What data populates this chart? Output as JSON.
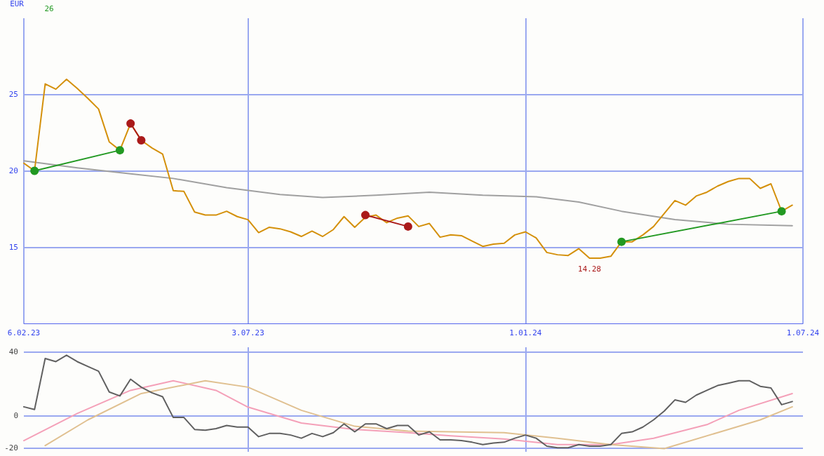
{
  "chart_data": [
    {
      "type": "line",
      "ylabel": "EUR",
      "xlim": [
        "2023-02-06",
        "2024-07-01"
      ],
      "ylim": [
        10,
        30
      ],
      "yticks": [
        15,
        20,
        25
      ],
      "xticks": [
        {
          "value": "2023-02-06",
          "label": "6.02.23"
        },
        {
          "value": "2023-07-03",
          "label": "3.07.23"
        },
        {
          "value": "2024-01-01",
          "label": "1.01.24"
        },
        {
          "value": "2024-07-01",
          "label": "1.07.24"
        }
      ],
      "grid": true,
      "annotations": [
        "26",
        {
          "text": "14.28",
          "x": "2024-02-12",
          "y": 14.28
        }
      ],
      "series": [
        {
          "color": "#a0a0a0",
          "marker": "none",
          "x": [
            "2023-02-06",
            "2023-03-13",
            "2023-04-17",
            "2023-05-15",
            "2023-06-19",
            "2023-07-24",
            "2023-08-21",
            "2023-09-25",
            "2023-10-30",
            "2023-12-04",
            "2024-01-08",
            "2024-02-05",
            "2024-03-04",
            "2024-04-08",
            "2024-05-13",
            "2024-06-24"
          ],
          "values": [
            20.65,
            20.2,
            19.8,
            19.5,
            18.9,
            18.45,
            18.25,
            18.4,
            18.6,
            18.4,
            18.3,
            17.95,
            17.35,
            16.8,
            16.5,
            16.4
          ]
        },
        {
          "color": "#d4900a",
          "marker": "none",
          "x": [
            "2023-02-06",
            "2023-02-13",
            "2023-02-20",
            "2023-02-27",
            "2023-03-06",
            "2023-03-13",
            "2023-03-20",
            "2023-03-27",
            "2023-04-03",
            "2023-04-10",
            "2023-04-17",
            "2023-04-24",
            "2023-05-01",
            "2023-05-08",
            "2023-05-15",
            "2023-05-22",
            "2023-05-29",
            "2023-06-05",
            "2023-06-12",
            "2023-06-19",
            "2023-06-26",
            "2023-07-03",
            "2023-07-10",
            "2023-07-17",
            "2023-07-24",
            "2023-07-31",
            "2023-08-07",
            "2023-08-14",
            "2023-08-21",
            "2023-08-28",
            "2023-09-04",
            "2023-09-11",
            "2023-09-18",
            "2023-09-25",
            "2023-10-02",
            "2023-10-09",
            "2023-10-16",
            "2023-10-23",
            "2023-10-30",
            "2023-11-06",
            "2023-11-13",
            "2023-11-20",
            "2023-11-27",
            "2023-12-04",
            "2023-12-11",
            "2023-12-18",
            "2023-12-25",
            "2024-01-01",
            "2024-01-08",
            "2024-01-15",
            "2024-01-22",
            "2024-01-29",
            "2024-02-05",
            "2024-02-12",
            "2024-02-19",
            "2024-02-26",
            "2024-03-04",
            "2024-03-11",
            "2024-03-18",
            "2024-03-25",
            "2024-04-01",
            "2024-04-08",
            "2024-04-15",
            "2024-04-22",
            "2024-04-29",
            "2024-05-06",
            "2024-05-13",
            "2024-05-20",
            "2024-05-27",
            "2024-06-03",
            "2024-06-10",
            "2024-06-17",
            "2024-06-24"
          ],
          "values": [
            20.5,
            20.0,
            25.7,
            25.35,
            26.0,
            25.4,
            24.75,
            24.05,
            21.9,
            21.35,
            23.1,
            22.0,
            21.5,
            21.1,
            18.7,
            18.65,
            17.3,
            17.1,
            17.1,
            17.35,
            17.0,
            16.8,
            15.95,
            16.3,
            16.2,
            16.0,
            15.7,
            16.05,
            15.7,
            16.15,
            17.0,
            16.3,
            16.95,
            17.1,
            16.6,
            16.9,
            17.05,
            16.35,
            16.55,
            15.65,
            15.8,
            15.75,
            15.4,
            15.05,
            15.2,
            15.25,
            15.8,
            16.0,
            15.6,
            14.65,
            14.5,
            14.45,
            14.9,
            14.28,
            14.28,
            14.4,
            15.35,
            15.35,
            15.8,
            16.35,
            17.2,
            18.05,
            17.75,
            18.35,
            18.6,
            19.0,
            19.3,
            19.5,
            19.5,
            18.85,
            19.15,
            17.35,
            17.75
          ]
        },
        {
          "color": "#229922",
          "marker": "circle",
          "x": [
            "2023-02-13",
            "2023-04-10"
          ],
          "values": [
            20.0,
            21.35
          ]
        },
        {
          "color": "#aa1a1a",
          "marker": "circle",
          "x": [
            "2023-04-17",
            "2023-04-24"
          ],
          "values": [
            23.1,
            22.0
          ]
        },
        {
          "color": "#aa1a1a",
          "marker": "circle",
          "x": [
            "2023-09-18",
            "2023-10-16"
          ],
          "values": [
            17.1,
            16.35
          ]
        },
        {
          "color": "#229922",
          "marker": "circle",
          "x": [
            "2024-03-04",
            "2024-06-17"
          ],
          "values": [
            15.35,
            17.35
          ]
        }
      ]
    },
    {
      "type": "line",
      "xlim": [
        "2023-02-06",
        "2024-07-01"
      ],
      "ylim": [
        -22.5,
        43
      ],
      "yticks": [
        -20,
        0,
        40
      ],
      "xticks": [
        {
          "value": "2023-07-03",
          "label": null
        },
        {
          "value": "2024-01-01",
          "label": null
        }
      ],
      "grid": true,
      "tick_labels": "y",
      "series": [
        {
          "color": "#f4a0b8",
          "x": [
            "2023-02-06",
            "2023-03-13",
            "2023-04-17",
            "2023-05-15",
            "2023-06-12",
            "2023-07-03",
            "2023-08-07",
            "2023-09-11",
            "2023-10-16",
            "2023-11-13",
            "2023-12-18",
            "2024-01-22",
            "2024-02-26",
            "2024-03-25",
            "2024-04-29",
            "2024-05-20",
            "2024-06-24"
          ],
          "values": [
            -15.5,
            1.5,
            16,
            22,
            16,
            5.5,
            -4.5,
            -8.5,
            -10.5,
            -12.5,
            -14.5,
            -18,
            -18,
            -14,
            -5.5,
            3.5,
            14
          ]
        },
        {
          "color": "#e0c090",
          "x": [
            "2023-02-20",
            "2023-03-20",
            "2023-04-24",
            "2023-06-05",
            "2023-07-03",
            "2023-08-07",
            "2023-09-11",
            "2023-10-16",
            "2023-11-13",
            "2023-12-18",
            "2024-01-22",
            "2024-02-26",
            "2024-04-01",
            "2024-05-06",
            "2024-06-03",
            "2024-06-24"
          ],
          "values": [
            -18.6,
            -2.5,
            14,
            22,
            18,
            3.5,
            -6.5,
            -9.5,
            -10,
            -10.5,
            -14,
            -18,
            -20.5,
            -10.5,
            -2.5,
            5.7
          ]
        },
        {
          "color": "#606060",
          "x": [
            "2023-02-06",
            "2023-02-13",
            "2023-02-20",
            "2023-02-27",
            "2023-03-06",
            "2023-03-13",
            "2023-03-20",
            "2023-03-27",
            "2023-04-03",
            "2023-04-10",
            "2023-04-17",
            "2023-04-24",
            "2023-05-01",
            "2023-05-08",
            "2023-05-15",
            "2023-05-22",
            "2023-05-29",
            "2023-06-05",
            "2023-06-12",
            "2023-06-19",
            "2023-06-26",
            "2023-07-03",
            "2023-07-10",
            "2023-07-17",
            "2023-07-24",
            "2023-07-31",
            "2023-08-07",
            "2023-08-14",
            "2023-08-21",
            "2023-08-28",
            "2023-09-04",
            "2023-09-11",
            "2023-09-18",
            "2023-09-25",
            "2023-10-02",
            "2023-10-09",
            "2023-10-16",
            "2023-10-23",
            "2023-10-30",
            "2023-11-06",
            "2023-11-13",
            "2023-11-20",
            "2023-11-27",
            "2023-12-04",
            "2023-12-11",
            "2023-12-18",
            "2023-12-25",
            "2024-01-01",
            "2024-01-08",
            "2024-01-15",
            "2024-01-22",
            "2024-01-29",
            "2024-02-05",
            "2024-02-12",
            "2024-02-19",
            "2024-02-26",
            "2024-03-04",
            "2024-03-11",
            "2024-03-18",
            "2024-03-25",
            "2024-04-01",
            "2024-04-08",
            "2024-04-15",
            "2024-04-22",
            "2024-04-29",
            "2024-05-06",
            "2024-05-13",
            "2024-05-20",
            "2024-05-27",
            "2024-06-03",
            "2024-06-10",
            "2024-06-17",
            "2024-06-24"
          ],
          "values": [
            5.7,
            4,
            36,
            34,
            38,
            34,
            31,
            28,
            15,
            12.5,
            23,
            18,
            14.5,
            12,
            -1,
            -1,
            -8.5,
            -9,
            -8,
            -6,
            -7,
            -7,
            -13,
            -11,
            -11,
            -12,
            -14,
            -11,
            -13,
            -10.5,
            -5,
            -10,
            -5,
            -5,
            -8,
            -6,
            -6,
            -12,
            -10,
            -15,
            -15,
            -15.5,
            -16.5,
            -18,
            -17,
            -16.5,
            -14,
            -12,
            -14,
            -19,
            -20,
            -20,
            -18,
            -19,
            -19,
            -18,
            -11,
            -10,
            -7,
            -2.5,
            3,
            10,
            8.5,
            13,
            16,
            19,
            20.5,
            22,
            22,
            18.5,
            17.5,
            7,
            9
          ]
        }
      ]
    }
  ]
}
